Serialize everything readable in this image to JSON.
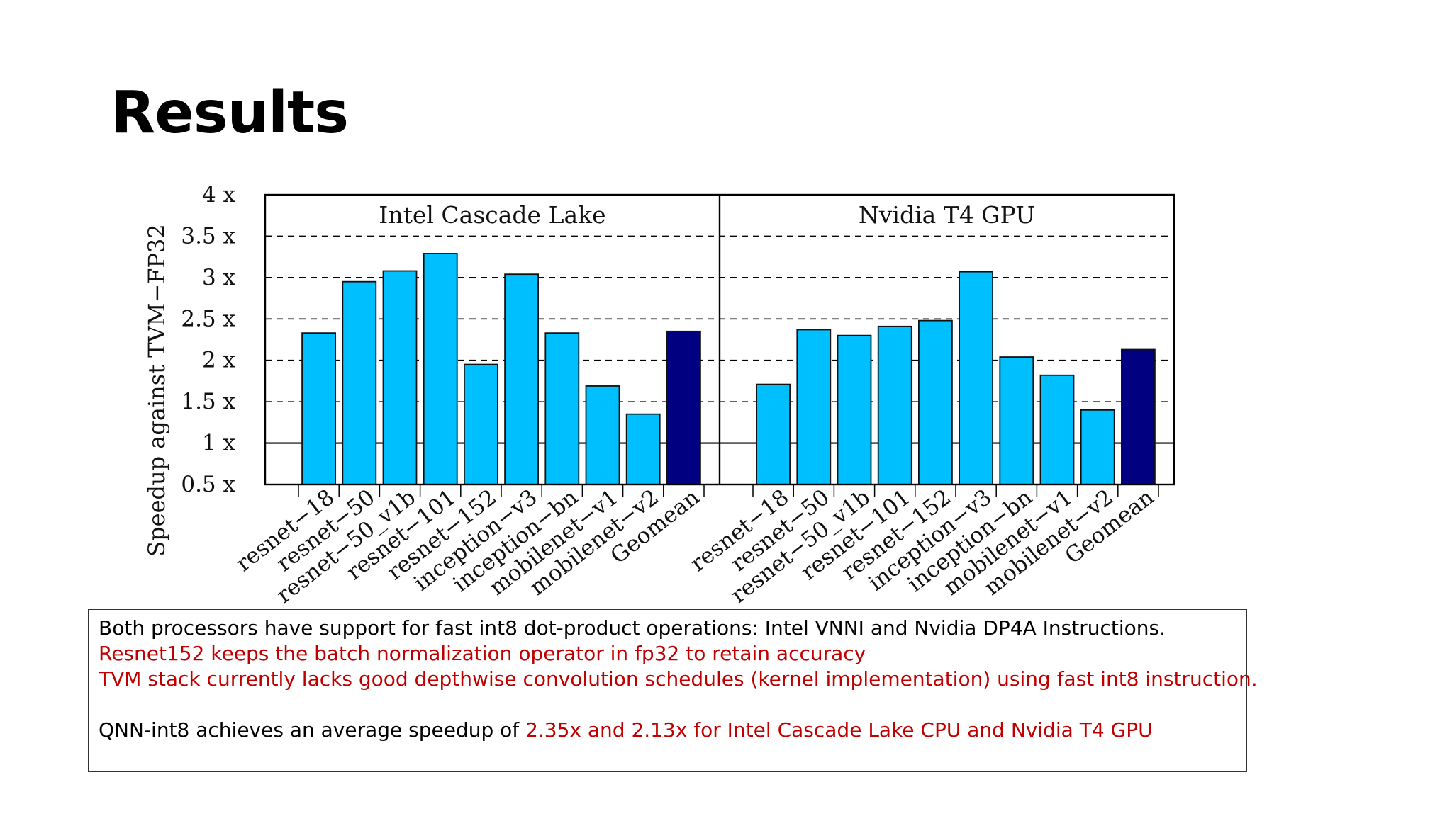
{
  "slide": {
    "title": "Results"
  },
  "chart_data": {
    "type": "bar",
    "ylabel": "Speedup against TVM−FP32",
    "ylim": [
      0.5,
      4
    ],
    "yticks": [
      0.5,
      1,
      1.5,
      2,
      2.5,
      3,
      3.5,
      4
    ],
    "ytick_labels": [
      "0.5 x",
      "1 x",
      "1.5 x",
      "2 x",
      "2.5 x",
      "3 x",
      "3.5 x",
      "4 x"
    ],
    "grid": "dashed horizontal",
    "reference_line": 1,
    "categories": [
      "resnet−18",
      "resnet−50",
      "resnet−50_v1b",
      "resnet−101",
      "resnet−152",
      "inception−v3",
      "inception−bn",
      "mobilenet−v1",
      "mobilenet−v2",
      "Geomean"
    ],
    "bar_color": "#00bfff",
    "highlight_color": "#000080",
    "panels": [
      {
        "title": "Intel Cascade Lake",
        "values": [
          2.33,
          2.95,
          3.08,
          3.29,
          1.95,
          3.04,
          2.33,
          1.69,
          1.35,
          2.35
        ]
      },
      {
        "title": "Nvidia T4 GPU",
        "values": [
          1.71,
          2.37,
          2.3,
          2.41,
          2.48,
          3.07,
          2.04,
          1.82,
          1.4,
          2.13
        ]
      }
    ]
  },
  "notes": {
    "line1": "Both processors have support for fast int8 dot-product operations: Intel VNNI and Nvidia DP4A Instructions.",
    "line2": "Resnet152 keeps the batch normalization operator in fp32 to retain accuracy",
    "line3": "TVM stack currently lacks good depthwise convolution schedules (kernel implementation) using fast int8 instruction.",
    "line4_prefix": "QNN-int8 achieves an average speedup of ",
    "line4_highlight": "2.35x and 2.13x for Intel Cascade Lake CPU and Nvidia T4 GPU"
  }
}
